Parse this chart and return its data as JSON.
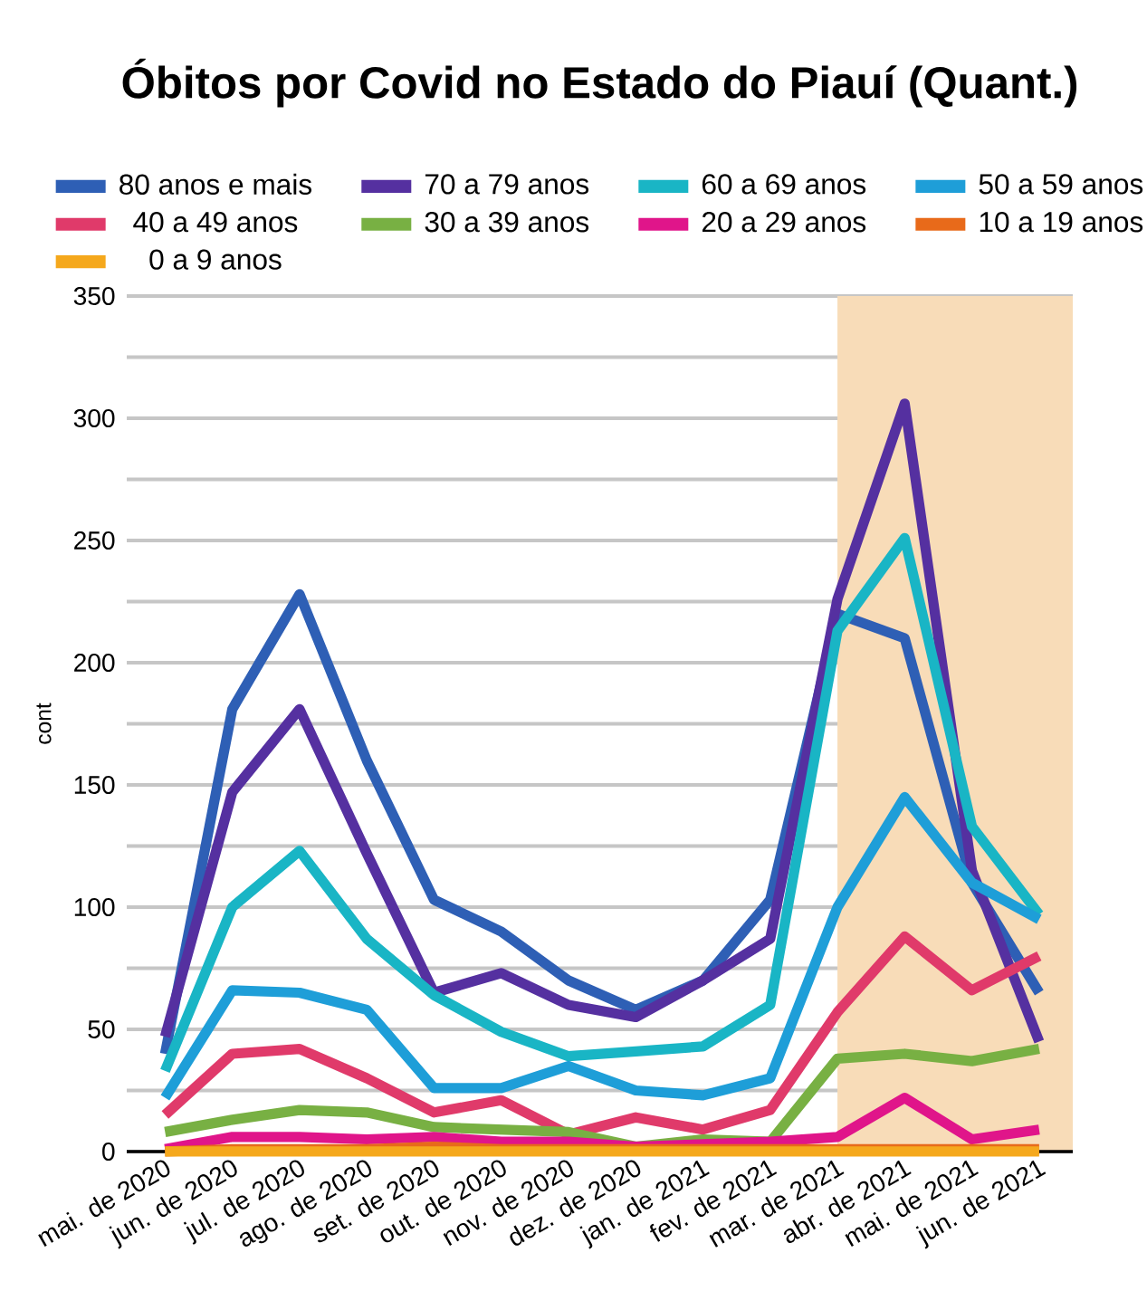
{
  "chart_data": {
    "type": "line",
    "title": "Óbitos por Covid no Estado do Piauí (Quant.)",
    "ylabel": "cont",
    "categories": [
      "mai. de 2020",
      "jun. de 2020",
      "jul. de 2020",
      "ago. de 2020",
      "set. de 2020",
      "out. de 2020",
      "nov. de 2020",
      "dez. de 2020",
      "jan. de 2021",
      "fev. de 2021",
      "mar. de 2021",
      "abr. de 2021",
      "mai. de 2021",
      "jun. de 2021"
    ],
    "series": [
      {
        "name": "80 anos e mais",
        "color": "#2e5fb5",
        "values": [
          40,
          181,
          228,
          160,
          103,
          90,
          70,
          58,
          70,
          103,
          220,
          210,
          110,
          65
        ]
      },
      {
        "name": "70 a 79 anos",
        "color": "#5530a0",
        "values": [
          47,
          147,
          181,
          122,
          65,
          73,
          60,
          55,
          70,
          87,
          226,
          306,
          115,
          45
        ]
      },
      {
        "name": "60 a 69 anos",
        "color": "#19b5c5",
        "values": [
          33,
          100,
          123,
          87,
          64,
          49,
          39,
          41,
          43,
          60,
          213,
          251,
          133,
          97
        ]
      },
      {
        "name": "50 a 59 anos",
        "color": "#1e9ed8",
        "values": [
          22,
          66,
          65,
          58,
          26,
          26,
          35,
          25,
          23,
          30,
          100,
          145,
          110,
          95
        ]
      },
      {
        "name": "40 a 49 anos",
        "color": "#e03a6a",
        "values": [
          15,
          40,
          42,
          30,
          16,
          21,
          7,
          14,
          9,
          17,
          57,
          88,
          66,
          80
        ]
      },
      {
        "name": "30 a 39 anos",
        "color": "#78b043",
        "values": [
          8,
          13,
          17,
          16,
          10,
          9,
          8,
          2,
          5,
          4,
          38,
          40,
          37,
          42
        ]
      },
      {
        "name": "20 a 29 anos",
        "color": "#e0158a",
        "values": [
          1,
          6,
          6,
          5,
          6,
          4,
          4,
          2,
          3,
          4,
          6,
          22,
          5,
          9
        ]
      },
      {
        "name": "10 a 19 anos",
        "color": "#e86a1a",
        "values": [
          0,
          1,
          1,
          1,
          2,
          1,
          1,
          1,
          1,
          1,
          1,
          1,
          1,
          1
        ]
      },
      {
        "name": "0 a 9 anos",
        "color": "#f5a81c",
        "values": [
          0,
          0,
          0,
          0,
          0,
          0,
          0,
          0,
          0,
          0,
          0,
          0,
          0,
          0
        ]
      }
    ],
    "ylim": [
      0,
      350
    ],
    "yticks": [
      0,
      {
        "value": 25,
        "label": null
      },
      50,
      {
        "value": 75,
        "label": null
      },
      100,
      {
        "value": 125,
        "label": null
      },
      150,
      {
        "value": 175,
        "label": null
      },
      200,
      {
        "value": 225,
        "label": null
      },
      250,
      {
        "value": 275,
        "label": null
      },
      300,
      {
        "value": 325,
        "label": null
      },
      350
    ],
    "grid": "y",
    "legend": "top",
    "marker": "none",
    "line_style": "solid",
    "bands": [
      {
        "axis": "x",
        "from": "mar. de 2021",
        "to": "jun. de 2021",
        "color": "#f8dcb8"
      }
    ]
  }
}
